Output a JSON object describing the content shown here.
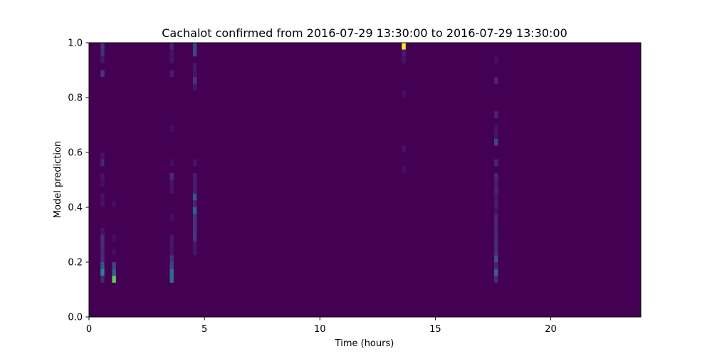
{
  "chart_data": {
    "type": "heatmap",
    "title": "Cachalot confirmed from 2016-07-29 13:30:00 to 2016-07-29 13:30:00",
    "xlabel": "Time (hours)",
    "ylabel": "Model prediction",
    "xlim": [
      0,
      23.9
    ],
    "ylim": [
      0,
      1
    ],
    "xticks": [
      "0",
      "5",
      "10",
      "15",
      "20"
    ],
    "yticks": [
      "0.0",
      "0.2",
      "0.4",
      "0.6",
      "0.8",
      "1.0"
    ],
    "colormap": "viridis",
    "background_color": "#440154",
    "grid": false,
    "note_values": "intensity normalized 0-1; unlisted cells are 0",
    "columns": [
      {
        "t": 0.5,
        "cells": [
          [
            0.975,
            0.15
          ],
          [
            0.95,
            0.12
          ],
          [
            0.925,
            0.06
          ],
          [
            0.875,
            0.15
          ],
          [
            0.575,
            0.05
          ],
          [
            0.55,
            0.1
          ],
          [
            0.5,
            0.05
          ],
          [
            0.475,
            0.04
          ],
          [
            0.425,
            0.05
          ],
          [
            0.4,
            0.05
          ],
          [
            0.3,
            0.05
          ],
          [
            0.275,
            0.12
          ],
          [
            0.25,
            0.12
          ],
          [
            0.225,
            0.12
          ],
          [
            0.2,
            0.12
          ],
          [
            0.175,
            0.25
          ],
          [
            0.15,
            0.45
          ],
          [
            0.125,
            0.1
          ]
        ]
      },
      {
        "t": 1.0,
        "cells": [
          [
            0.4,
            0.04
          ],
          [
            0.275,
            0.04
          ],
          [
            0.225,
            0.04
          ],
          [
            0.175,
            0.2
          ],
          [
            0.15,
            0.3
          ],
          [
            0.125,
            0.75
          ]
        ]
      },
      {
        "t": 3.5,
        "cells": [
          [
            0.975,
            0.1
          ],
          [
            0.95,
            0.05
          ],
          [
            0.925,
            0.05
          ],
          [
            0.875,
            0.08
          ],
          [
            0.675,
            0.04
          ],
          [
            0.55,
            0.04
          ],
          [
            0.5,
            0.12
          ],
          [
            0.475,
            0.05
          ],
          [
            0.45,
            0.05
          ],
          [
            0.35,
            0.04
          ],
          [
            0.275,
            0.06
          ],
          [
            0.25,
            0.06
          ],
          [
            0.225,
            0.06
          ],
          [
            0.2,
            0.15
          ],
          [
            0.175,
            0.2
          ],
          [
            0.15,
            0.35
          ],
          [
            0.125,
            0.35
          ]
        ]
      },
      {
        "t": 4.5,
        "cells": [
          [
            0.975,
            0.2
          ],
          [
            0.95,
            0.2
          ],
          [
            0.9,
            0.06
          ],
          [
            0.875,
            0.06
          ],
          [
            0.85,
            0.15
          ],
          [
            0.825,
            0.06
          ],
          [
            0.55,
            0.05
          ],
          [
            0.5,
            0.08
          ],
          [
            0.475,
            0.08
          ],
          [
            0.45,
            0.08
          ],
          [
            0.425,
            0.25
          ],
          [
            0.4,
            0.1
          ],
          [
            0.375,
            0.3
          ],
          [
            0.35,
            0.15
          ],
          [
            0.325,
            0.15
          ],
          [
            0.3,
            0.15
          ],
          [
            0.275,
            0.15
          ],
          [
            0.25,
            0.06
          ],
          [
            0.225,
            0.06
          ]
        ]
      },
      {
        "t": 13.55,
        "cells": [
          [
            0.975,
            1.0
          ],
          [
            0.95,
            0.08
          ],
          [
            0.925,
            0.05
          ],
          [
            0.8,
            0.04
          ],
          [
            0.6,
            0.05
          ],
          [
            0.525,
            0.04
          ]
        ]
      },
      {
        "t": 17.55,
        "cells": [
          [
            0.925,
            0.04
          ],
          [
            0.85,
            0.1
          ],
          [
            0.725,
            0.1
          ],
          [
            0.675,
            0.05
          ],
          [
            0.65,
            0.05
          ],
          [
            0.625,
            0.2
          ],
          [
            0.55,
            0.1
          ],
          [
            0.5,
            0.1
          ],
          [
            0.475,
            0.08
          ],
          [
            0.45,
            0.1
          ],
          [
            0.425,
            0.06
          ],
          [
            0.4,
            0.08
          ],
          [
            0.375,
            0.05
          ],
          [
            0.35,
            0.1
          ],
          [
            0.325,
            0.1
          ],
          [
            0.3,
            0.1
          ],
          [
            0.275,
            0.1
          ],
          [
            0.25,
            0.12
          ],
          [
            0.225,
            0.12
          ],
          [
            0.2,
            0.25
          ],
          [
            0.175,
            0.1
          ],
          [
            0.15,
            0.3
          ],
          [
            0.125,
            0.12
          ]
        ]
      }
    ]
  }
}
